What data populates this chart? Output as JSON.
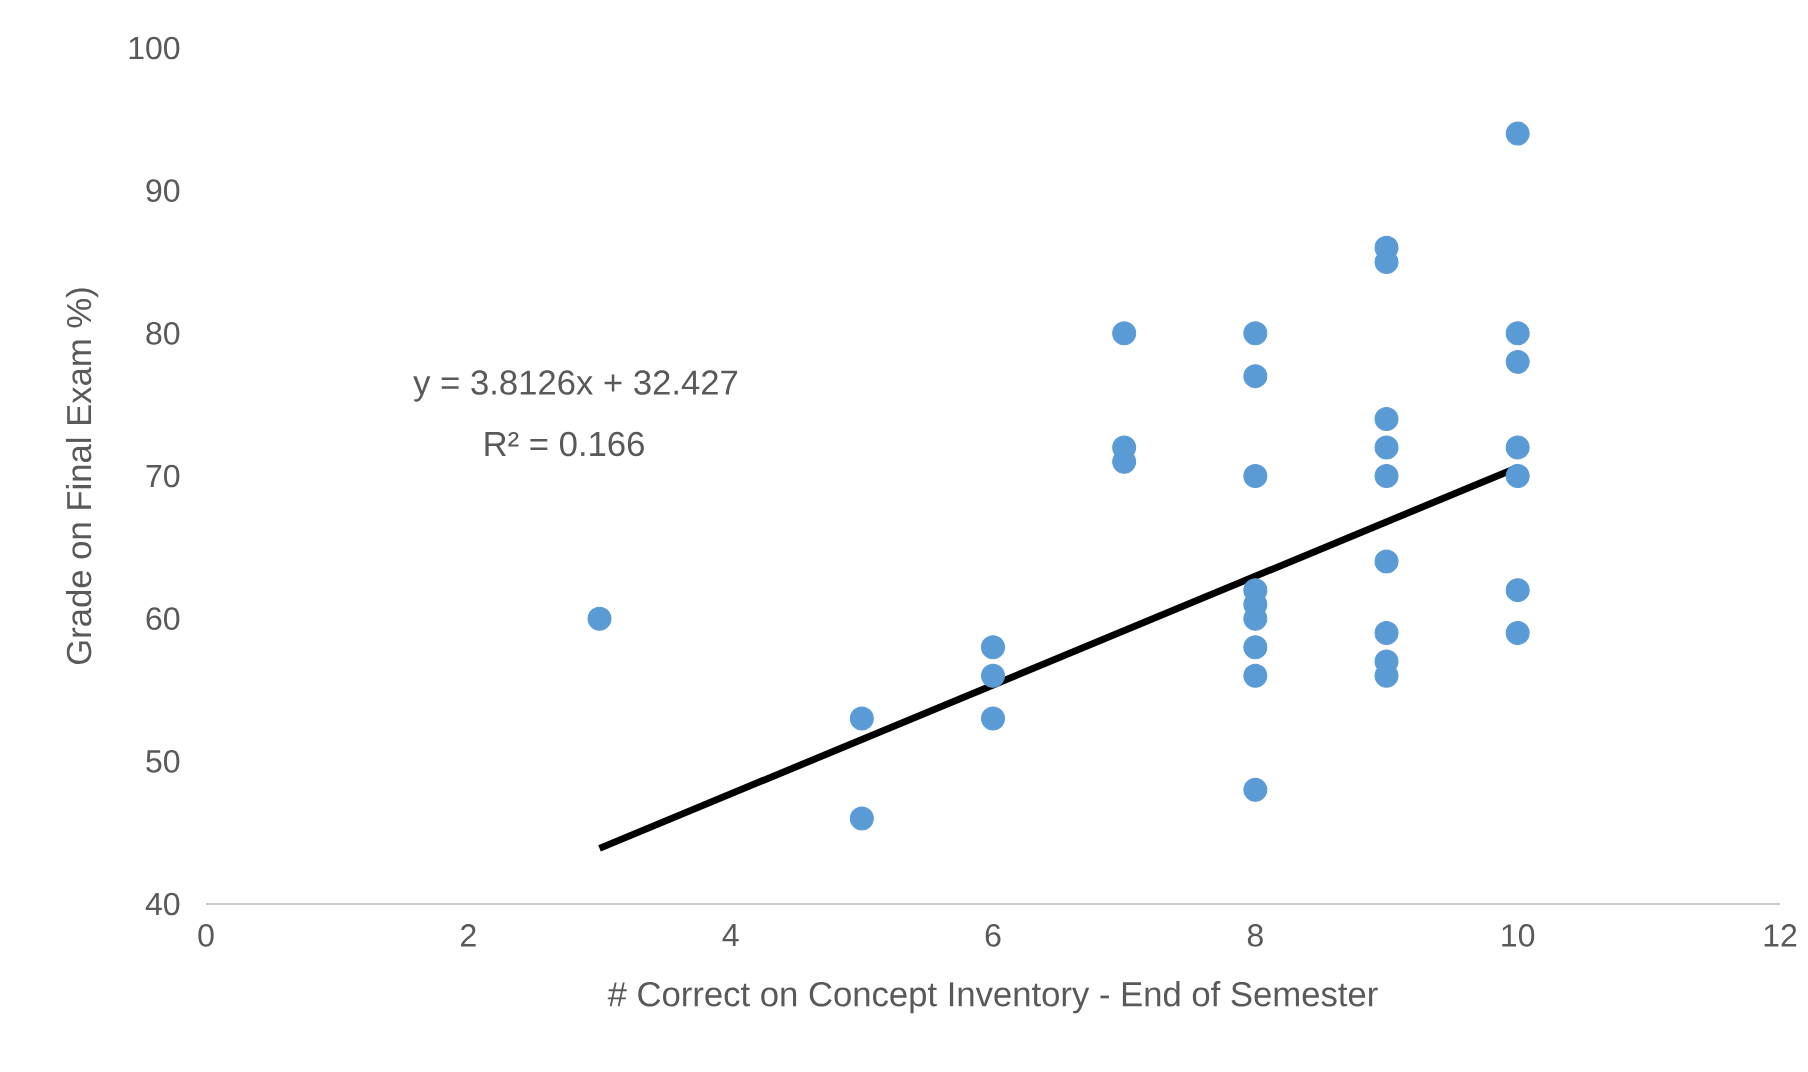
{
  "chart_data": {
    "type": "scatter",
    "xlabel": "# Correct on Concept Inventory - End of Semester",
    "ylabel": "Grade on Final Exam %)",
    "xlim": [
      0,
      12
    ],
    "xticks": [
      0,
      2,
      4,
      6,
      8,
      10,
      12
    ],
    "ylim": [
      40,
      100
    ],
    "yticks": [
      40,
      50,
      60,
      70,
      80,
      90,
      100
    ],
    "series": [
      {
        "color": "#5b9bd5",
        "marker": "circle",
        "x": [
          3,
          5,
          5,
          6,
          6,
          6,
          7,
          7,
          7,
          8,
          8,
          8,
          8,
          8,
          8,
          8,
          8,
          8,
          9,
          9,
          9,
          9,
          9,
          9,
          9,
          9,
          9,
          10,
          10,
          10,
          10,
          10,
          10,
          10
        ],
        "values": [
          60,
          53,
          46,
          58,
          56,
          53,
          80,
          72,
          71,
          80,
          77,
          70,
          62,
          61,
          60,
          58,
          56,
          48,
          86,
          85,
          74,
          72,
          70,
          64,
          59,
          57,
          56,
          94,
          80,
          78,
          72,
          70,
          62,
          59
        ]
      },
      {
        "type": "line",
        "color": "#000000",
        "marker": "none",
        "x": [
          3,
          10
        ],
        "values": [
          43.9,
          70.6
        ]
      }
    ],
    "annotations": [
      "y = 3.8126x + 32.427",
      "R² = 0.166"
    ]
  }
}
